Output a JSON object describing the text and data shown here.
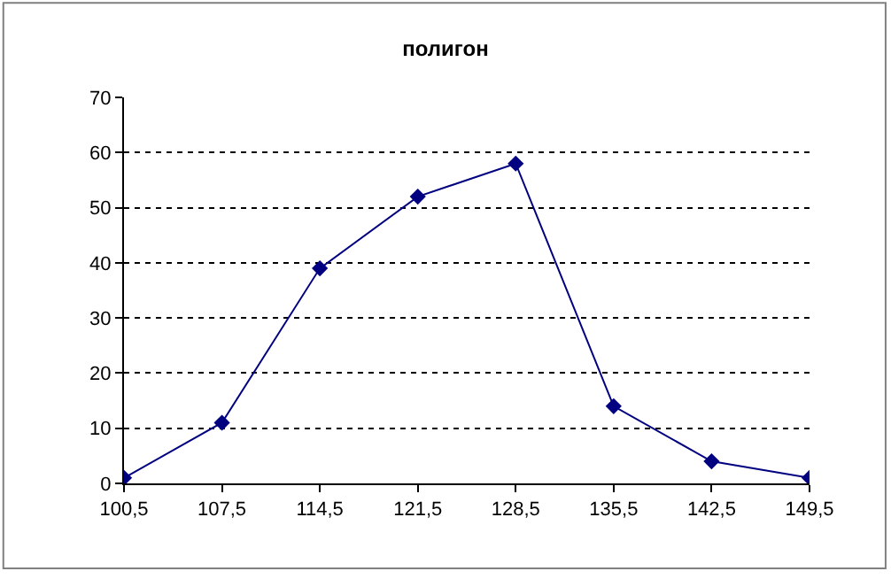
{
  "chart_data": {
    "type": "line",
    "title": "полигон",
    "categories": [
      "100,5",
      "107,5",
      "114,5",
      "121,5",
      "128,5",
      "135,5",
      "142,5",
      "149,5"
    ],
    "series": [
      {
        "color": "#000080",
        "values": [
          1,
          11,
          39,
          52,
          58,
          14,
          4,
          1
        ]
      }
    ],
    "ylim": [
      0,
      70
    ],
    "yticks": [
      0,
      10,
      20,
      30,
      40,
      50,
      60,
      70
    ],
    "grid": "y",
    "marker": "diamond",
    "line_style": "solid"
  }
}
